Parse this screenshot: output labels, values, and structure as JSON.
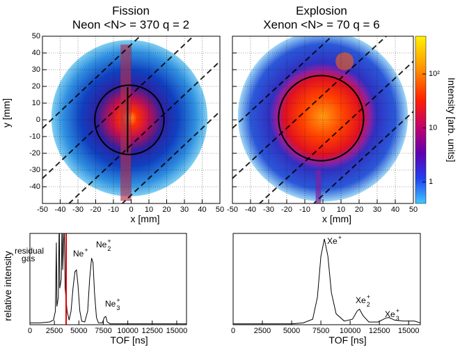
{
  "chart_data": [
    {
      "type": "heatmap",
      "title": "Fission",
      "subtitle": "Neon <N> = 370  q = 2",
      "xlabel": "x [mm]",
      "ylabel": "y [mm]",
      "xlim": [
        -50,
        50
      ],
      "ylim": [
        -50,
        50
      ],
      "xticks": [
        -50,
        -40,
        -30,
        -20,
        -10,
        0,
        10,
        20,
        30,
        40,
        50
      ],
      "yticks": [
        -40,
        -30,
        -20,
        -10,
        0,
        10,
        20,
        30,
        40,
        50
      ],
      "grid": true
    },
    {
      "type": "heatmap",
      "title": "Explosion",
      "subtitle": "Xenon <N> = 70   q = 6",
      "xlabel": "x [mm]",
      "xlim": [
        -50,
        50
      ],
      "ylim": [
        -50,
        50
      ],
      "xticks": [
        -50,
        -40,
        -30,
        -20,
        -10,
        0,
        10,
        20,
        30,
        40,
        50
      ],
      "yticks": [
        -40,
        -30,
        -20,
        -10,
        0,
        10,
        20,
        30,
        40,
        50
      ],
      "grid": true,
      "colorbar": {
        "label": "Intensity [arb. units]",
        "log": true,
        "zlim": [
          0.4,
          500
        ],
        "ticks": [
          1,
          10,
          {
            "value": 100,
            "label": "10²"
          }
        ]
      }
    },
    {
      "type": "line",
      "xlabel": "TOF [ns]",
      "ylabel": "relative intensity",
      "xlim": [
        0,
        16000
      ],
      "ylim": [
        0,
        1
      ],
      "xticks": [
        0,
        2500,
        5000,
        7500,
        10000,
        12500,
        15000
      ],
      "color": "#000000",
      "x": [
        0,
        1000,
        2000,
        2400,
        2600,
        2700,
        2750,
        2900,
        3000,
        3050,
        3200,
        3300,
        3350,
        3500,
        3600,
        3800,
        4000,
        4200,
        4400,
        4600,
        4750,
        4900,
        5100,
        5300,
        5600,
        5900,
        6100,
        6300,
        6450,
        6600,
        6800,
        7000,
        7400,
        7600,
        7750,
        7900,
        8200,
        10000,
        16000
      ],
      "values": [
        0.02,
        0.02,
        0.03,
        0.05,
        0.15,
        0.9,
        0.2,
        0.3,
        1.2,
        0.4,
        0.5,
        1.2,
        0.6,
        1.1,
        0.4,
        0.15,
        0.05,
        0.15,
        0.4,
        0.58,
        0.6,
        0.45,
        0.15,
        0.04,
        0.03,
        0.15,
        0.5,
        0.73,
        0.68,
        0.35,
        0.08,
        0.02,
        0.02,
        0.08,
        0.09,
        0.03,
        0.01,
        0.01,
        0.01
      ],
      "marker_line": {
        "x": 3700,
        "color": "#e00000"
      },
      "annotations": [
        {
          "lines": [
            "residual",
            "gas"
          ]
        },
        {
          "text": "Ne",
          "sup": "+"
        },
        {
          "text": "Ne",
          "sub": "2",
          "sup": "+"
        },
        {
          "text": "Ne",
          "sub": "3",
          "sup": "+"
        }
      ]
    },
    {
      "type": "line",
      "xlabel": "TOF [ns]",
      "xlim": [
        0,
        16000
      ],
      "ylim": [
        0,
        1
      ],
      "xticks": [
        0,
        2500,
        5000,
        7500,
        10000,
        12500,
        15000
      ],
      "color": "#000000",
      "x": [
        0,
        5000,
        6000,
        6800,
        7200,
        7500,
        7800,
        8100,
        8400,
        8800,
        9500,
        10200,
        10600,
        10800,
        11100,
        11600,
        12400,
        13000,
        13300,
        13800,
        14500,
        15500,
        16000
      ],
      "values": [
        0.01,
        0.01,
        0.02,
        0.06,
        0.3,
        0.75,
        0.94,
        0.75,
        0.35,
        0.12,
        0.04,
        0.06,
        0.15,
        0.17,
        0.1,
        0.03,
        0.03,
        0.07,
        0.08,
        0.05,
        0.04,
        0.04,
        0.02
      ],
      "annotations": [
        {
          "text": "Xe",
          "sup": "+"
        },
        {
          "text": "Xe",
          "sub": "2",
          "sup": "+"
        },
        {
          "text": "Xe",
          "sub": "3",
          "sup": "+"
        }
      ]
    }
  ]
}
